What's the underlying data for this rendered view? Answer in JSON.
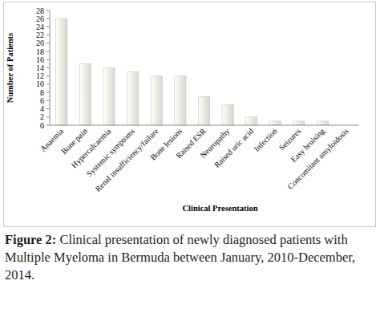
{
  "chart_data": {
    "type": "bar",
    "caption_label": "Figure 2:",
    "caption": "Clinical presentation of newly diagnosed patients with Multiple Myeloma in Bermuda between January, 2010-December, 2014.",
    "x_label": "Clinical Presentation",
    "y_label": "Number of Patients",
    "categories": [
      "Anaemia",
      "Bone pain",
      "Hypercalcaemia",
      "Systemic symptoms",
      "Renal insufficiency/failure",
      "Bone lesions",
      "Raised ESR",
      "Neuropathy",
      "Raised uric acid",
      "Infection",
      "Seizures",
      "Easy bruising",
      "Concomitant amyloidosis"
    ],
    "values": [
      26,
      15,
      14,
      13,
      12,
      12,
      7,
      5,
      2,
      1,
      1,
      1,
      0
    ],
    "color": "#ebebe3",
    "ylim": [
      0,
      28
    ],
    "yticks": [
      0,
      2,
      4,
      6,
      8,
      10,
      12,
      14,
      16,
      18,
      20,
      22,
      24,
      26,
      28
    ],
    "grid": false
  }
}
